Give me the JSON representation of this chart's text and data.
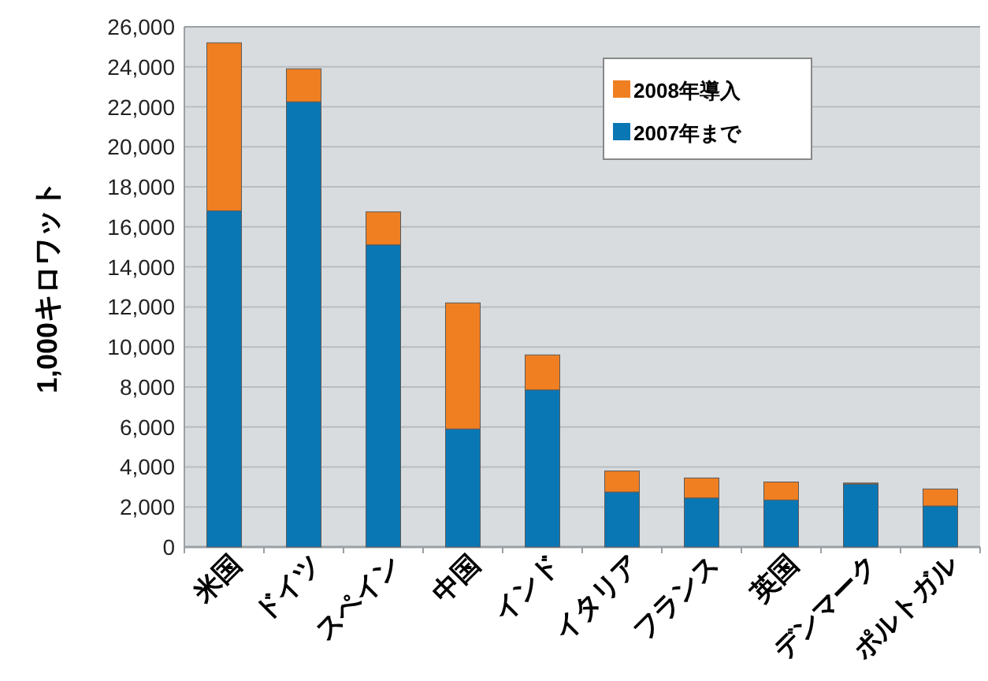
{
  "chart_data": {
    "type": "bar",
    "stacked": true,
    "ylabel": "1,000キロワット",
    "categories": [
      "米国",
      "ドイツ",
      "スペイン",
      "中国",
      "インド",
      "イタリア",
      "フランス",
      "英国",
      "デンマーク",
      "ポルトガル"
    ],
    "series": [
      {
        "name": "2007年まで",
        "color": "#0a77b5",
        "values": [
          16800,
          22250,
          15100,
          5900,
          7850,
          2750,
          2450,
          2350,
          3150,
          2050
        ]
      },
      {
        "name": "2008年導入",
        "color": "#f07f22",
        "values": [
          8400,
          1650,
          1650,
          6300,
          1750,
          1050,
          1000,
          900,
          50,
          850
        ]
      }
    ],
    "ylim": [
      0,
      26000
    ],
    "yticks": [
      0,
      {
        "value": 2000,
        "label": "2,000"
      },
      {
        "value": 4000,
        "label": "4,000"
      },
      {
        "value": 6000,
        "label": "6,000"
      },
      {
        "value": 8000,
        "label": "8,000"
      },
      {
        "value": 10000,
        "label": "10,000"
      },
      {
        "value": 12000,
        "label": "12,000"
      },
      {
        "value": 14000,
        "label": "14,000"
      },
      {
        "value": 16000,
        "label": "16,000"
      },
      {
        "value": 18000,
        "label": "18,000"
      },
      {
        "value": 20000,
        "label": "20,000"
      },
      {
        "value": 22000,
        "label": "22,000"
      },
      {
        "value": 24000,
        "label": "24,000"
      },
      {
        "value": 26000,
        "label": "26,000"
      }
    ],
    "grid": "y",
    "legend": "top right"
  }
}
